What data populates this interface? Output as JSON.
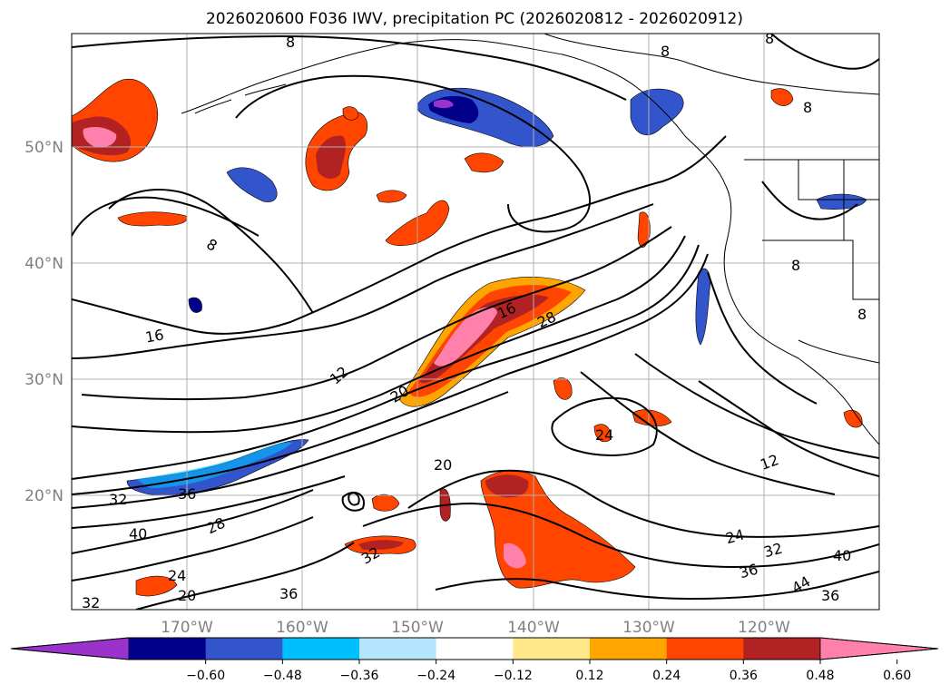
{
  "title": "2026020600 F036 IWV, precipitation PC (2026020812 - 2026020912)",
  "map": {
    "lat_labels": [
      "50°N",
      "40°N",
      "30°N",
      "20°N"
    ],
    "lon_labels": [
      "170°W",
      "160°W",
      "150°W",
      "140°W",
      "130°W",
      "120°W"
    ],
    "extent": {
      "lon": [
        -180,
        -110
      ],
      "lat": [
        10,
        60
      ]
    }
  },
  "contour_labels": [
    "8",
    "8",
    "8",
    "8",
    "8",
    "8",
    "8",
    "12",
    "12",
    "16",
    "16",
    "20",
    "20",
    "24",
    "24",
    "24",
    "28",
    "28",
    "32",
    "32",
    "32",
    "36",
    "36",
    "36",
    "36",
    "40",
    "40",
    "44",
    "32",
    "20"
  ],
  "colorbar": {
    "ticks": [
      "−0.60",
      "−0.48",
      "−0.36",
      "−0.24",
      "−0.12",
      "0.12",
      "0.24",
      "0.36",
      "0.48",
      "0.60"
    ],
    "colors": [
      "#9933cc",
      "#00008b",
      "#3355cc",
      "#00bfff",
      "#b3e5fc",
      "#ffffff",
      "#ffe88a",
      "#ffa500",
      "#ff4500",
      "#b22222",
      "#ff80ab"
    ]
  }
}
